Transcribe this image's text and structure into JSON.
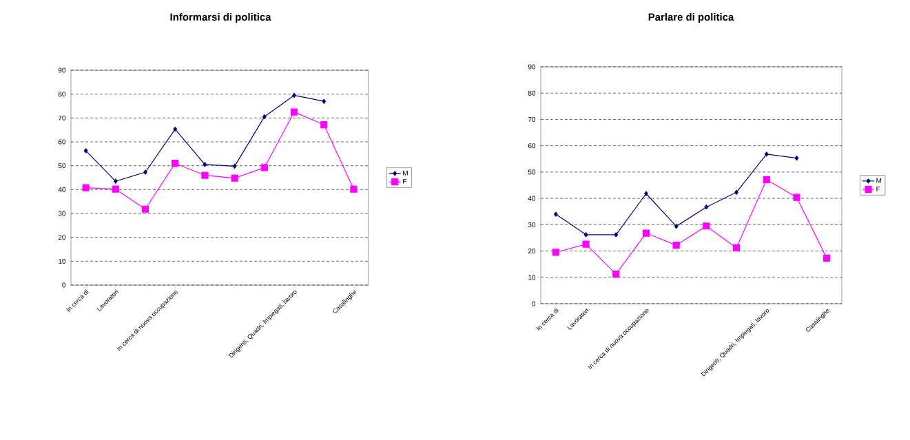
{
  "chart_data": [
    {
      "type": "line",
      "title": "Informarsi di politica",
      "categories": [
        "In cerca di",
        "Lavoratori",
        null,
        "In cerca di nuova occupazione",
        null,
        null,
        null,
        "Dirigenti, Quadri, Impiegati, lavoro",
        null,
        "Casalinghe"
      ],
      "series": [
        {
          "name": "M",
          "color": "#000080",
          "marker": "diamond",
          "values": [
            56.3,
            43.5,
            47.3,
            65.3,
            50.5,
            49.8,
            70.5,
            79.5,
            77.0,
            null
          ]
        },
        {
          "name": "F",
          "color": "#ff00ff",
          "marker": "square",
          "values": [
            40.8,
            40.2,
            31.8,
            51.0,
            46.0,
            44.8,
            49.2,
            72.5,
            67.2,
            40.2
          ]
        }
      ],
      "ylim": [
        0,
        90
      ],
      "yticks": [
        0,
        10,
        20,
        30,
        40,
        50,
        60,
        70,
        80,
        90
      ],
      "grid": "y",
      "legend": "right",
      "line_style": "solid"
    },
    {
      "type": "line",
      "title": "Parlare di politica",
      "categories": [
        "In cerca di",
        "Lavoratori",
        null,
        "In cerca di nuova occupazione",
        null,
        null,
        null,
        "Dirigenti, Quadri, Impiegati, lavoro",
        null,
        "Casalinghe"
      ],
      "series": [
        {
          "name": "M",
          "color": "#000080",
          "marker": "diamond",
          "values": [
            34.0,
            26.2,
            26.2,
            41.8,
            29.4,
            36.7,
            42.3,
            56.8,
            55.3,
            null
          ]
        },
        {
          "name": "F",
          "color": "#ff00ff",
          "marker": "square",
          "values": [
            19.5,
            22.6,
            11.2,
            26.8,
            22.2,
            29.5,
            21.2,
            47.1,
            40.4,
            17.3
          ]
        }
      ],
      "ylim": [
        0,
        90
      ],
      "yticks": [
        0,
        10,
        20,
        30,
        40,
        50,
        60,
        70,
        80,
        90
      ],
      "grid": "y",
      "legend": "right",
      "line_style": "solid"
    }
  ]
}
